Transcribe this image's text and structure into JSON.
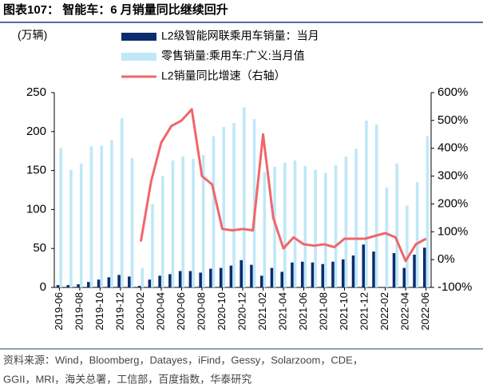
{
  "chart_data": {
    "type": "bar_line",
    "title": "图表107：  智能车：6 月销量同比继续回升",
    "y_label": "(万辆)",
    "source": "资料来源：Wind，Bloomberg，Datayes，iFind，Gessy，Solarzoom，CDE，",
    "source_2": "GGII，MRI，海关总署，工信部，百度指数，华泰研究",
    "categories": [
      "2019-06",
      null,
      "2019-08",
      null,
      "2019-10",
      null,
      "2019-12",
      null,
      "2020-02",
      null,
      "2020-04",
      null,
      "2020-06",
      null,
      "2020-08",
      null,
      "2020-10",
      null,
      "2020-12",
      null,
      "2021-02",
      null,
      "2021-04",
      null,
      "2021-06",
      null,
      "2021-08",
      null,
      "2021-10",
      null,
      "2021-12",
      null,
      "2022-02",
      null,
      "2022-04",
      null,
      "2022-06"
    ],
    "series": [
      {
        "name": "L2级智能网联乘用车销量：当月",
        "color": "#0c2c6e",
        "type": "bar",
        "values": [
          3,
          3,
          4,
          7,
          10,
          13,
          16,
          14,
          2,
          10,
          15,
          17,
          21,
          21,
          19,
          24,
          25,
          28,
          35,
          29,
          15,
          25,
          20,
          32,
          33,
          32,
          30,
          33,
          36,
          41,
          55,
          46,
          null,
          44,
          25,
          42,
          51
        ]
      },
      {
        "name": "零售销量:乘用车:广义:当月值",
        "color": "#bfe8f7",
        "type": "bar",
        "values": [
          179,
          151,
          159,
          181,
          182,
          189,
          217,
          166,
          25,
          107,
          143,
          163,
          168,
          165,
          170,
          194,
          206,
          211,
          231,
          216,
          148,
          155,
          160,
          163,
          156,
          151,
          147,
          157,
          168,
          178,
          214,
          209,
          128,
          159,
          105,
          135,
          194
        ]
      },
      {
        "name": "L2销量同比增速（右轴）",
        "color": "#f0666a",
        "type": "line",
        "axis": "y2",
        "values": [
          null,
          null,
          null,
          null,
          null,
          null,
          null,
          null,
          65,
          280,
          420,
          480,
          500,
          540,
          300,
          270,
          110,
          105,
          110,
          105,
          450,
          150,
          40,
          80,
          55,
          50,
          55,
          45,
          75,
          75,
          75,
          85,
          95,
          80,
          -5,
          55,
          75
        ]
      }
    ],
    "ylim": [
      0,
      250
    ],
    "yticks": [
      0,
      50,
      100,
      150,
      200,
      250
    ],
    "y2lim": [
      -100,
      600
    ],
    "y2ticks": [
      {
        "value": -100,
        "label": "-100%"
      },
      {
        "value": 0,
        "label": "0%"
      },
      {
        "value": 100,
        "label": "100%"
      },
      {
        "value": 200,
        "label": "200%"
      },
      {
        "value": 300,
        "label": "300%"
      },
      {
        "value": 400,
        "label": "400%"
      },
      {
        "value": 500,
        "label": "500%"
      },
      {
        "value": 600,
        "label": "600%"
      }
    ]
  }
}
